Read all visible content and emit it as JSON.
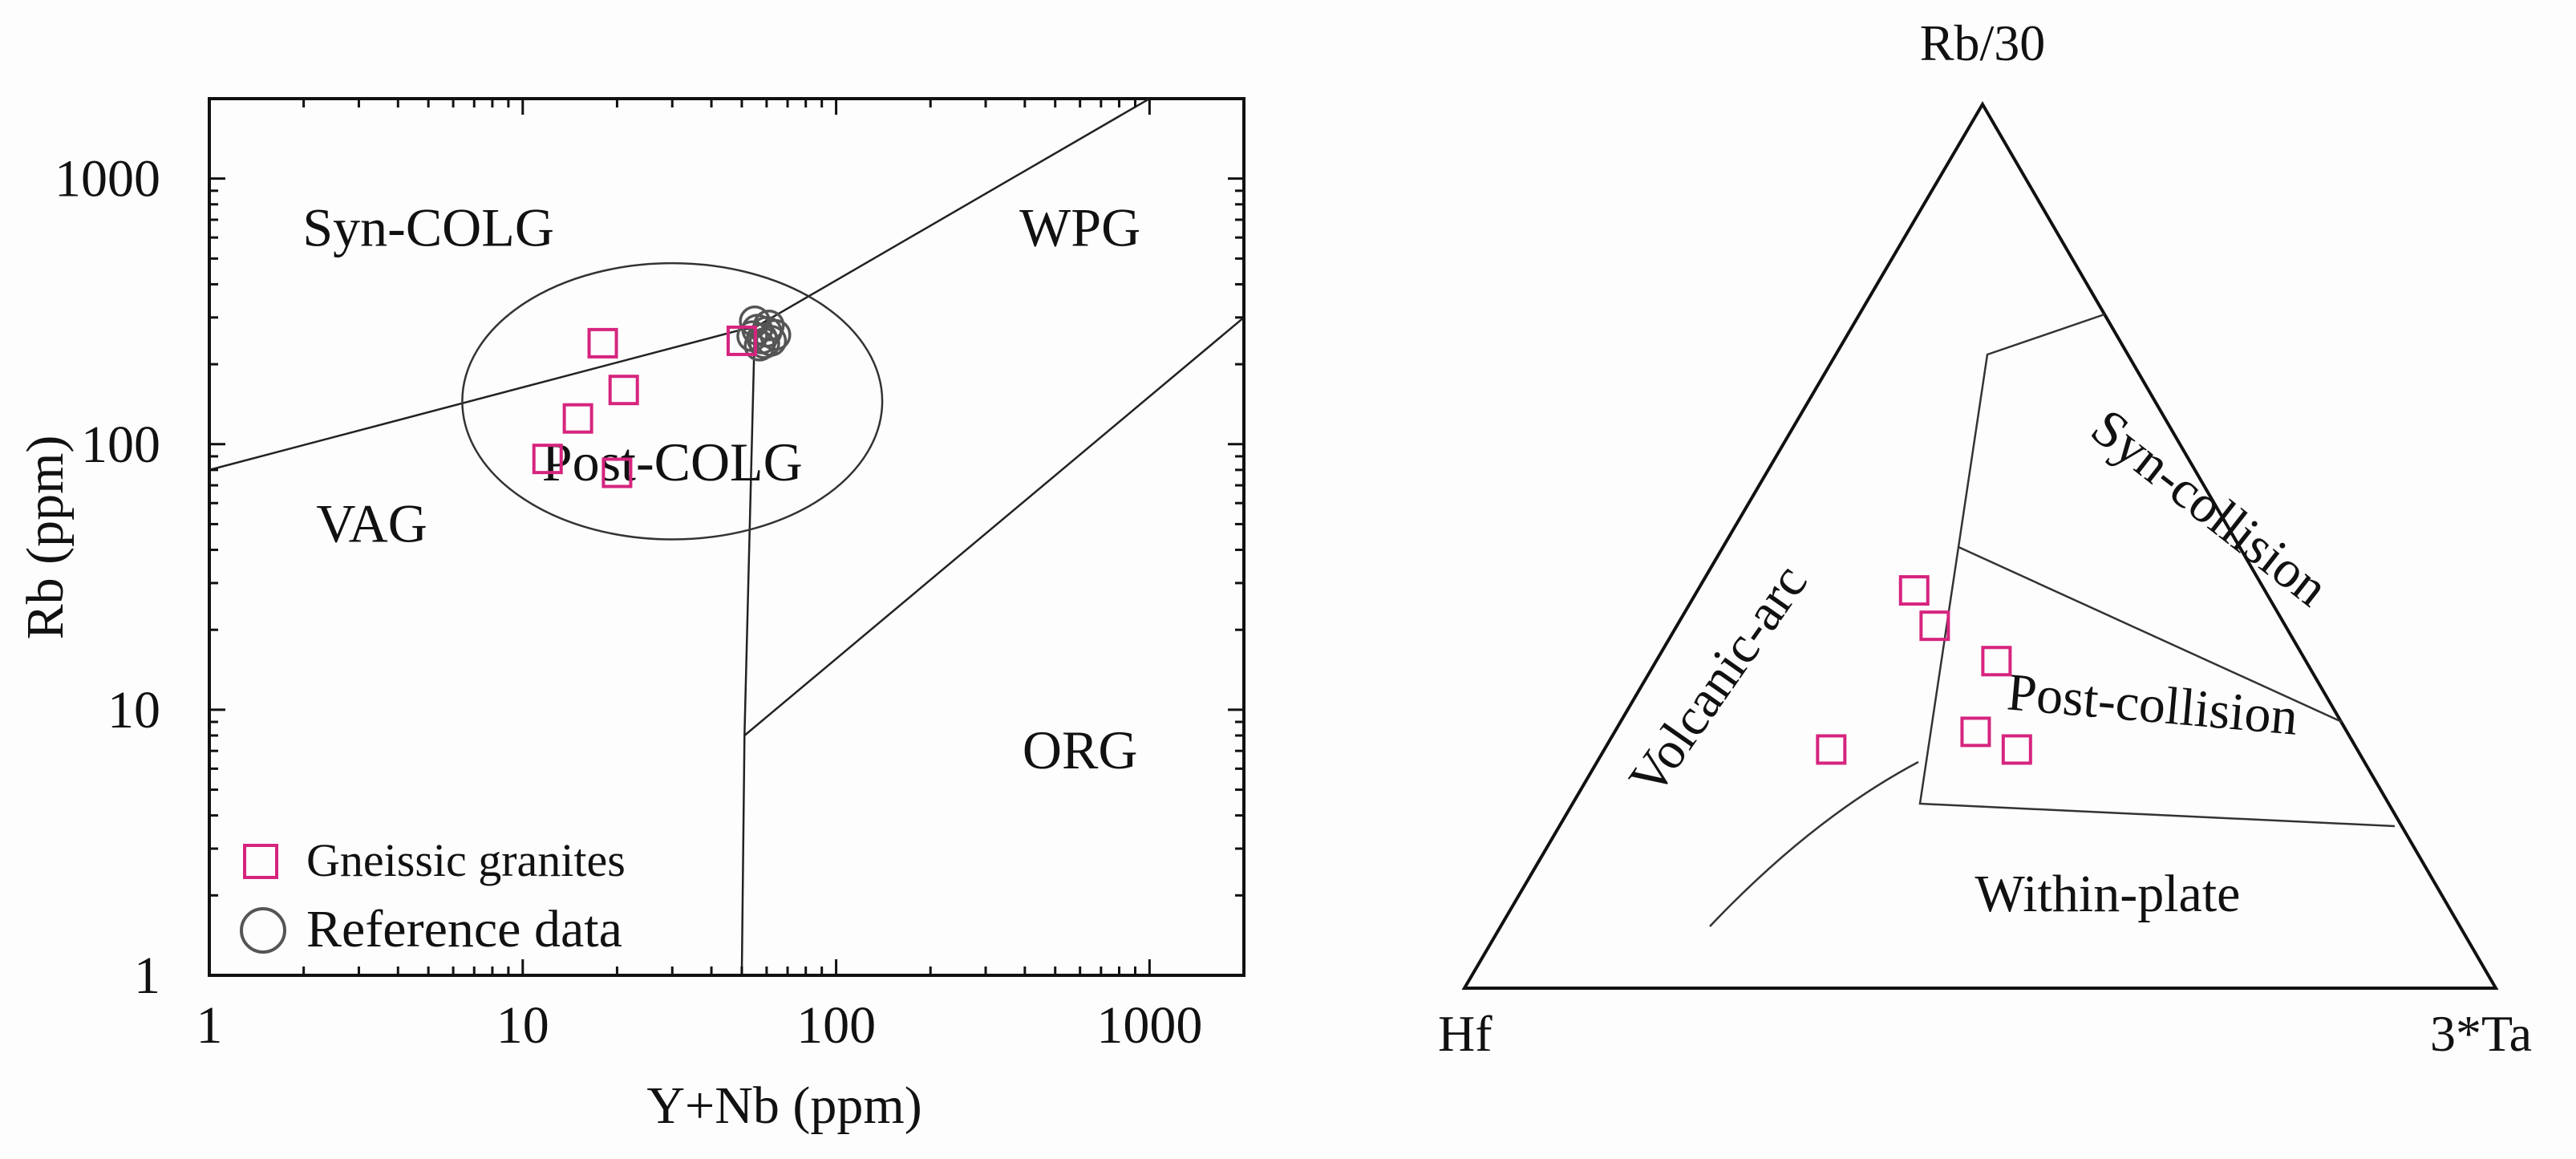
{
  "chart_data": [
    {
      "type": "scatter",
      "x_scale": "log",
      "y_scale": "log",
      "xlim": [
        1,
        2000
      ],
      "ylim": [
        1,
        2000
      ],
      "xlabel": "Y+Nb (ppm)",
      "ylabel": "Rb (ppm)",
      "x_ticks": [
        {
          "value": 1,
          "label": "1"
        },
        {
          "value": 10,
          "label": "10"
        },
        {
          "value": 100,
          "label": "100"
        },
        {
          "value": 1000,
          "label": "1000"
        }
      ],
      "y_ticks": [
        {
          "value": 1,
          "label": "1"
        },
        {
          "value": 10,
          "label": "10"
        },
        {
          "value": 100,
          "label": "100"
        },
        {
          "value": 1000,
          "label": "1000"
        }
      ],
      "grid": false,
      "legend_position": "bottom-left",
      "field_labels": [
        {
          "text": "Syn-COLG",
          "x": 5,
          "y": 650
        },
        {
          "text": "WPG",
          "x": 600,
          "y": 650
        },
        {
          "text": "VAG",
          "x": 3.3,
          "y": 50
        },
        {
          "text": "ORG",
          "x": 600,
          "y": 7
        },
        {
          "text": "Post-COLG",
          "x": 30,
          "y": 85
        }
      ],
      "boundaries": [
        [
          [
            1,
            80
          ],
          [
            50,
            270
          ],
          [
            55,
            275
          ],
          [
            1000,
            2000
          ]
        ],
        [
          [
            50,
            1
          ],
          [
            51,
            8
          ],
          [
            55,
            275
          ]
        ],
        [
          [
            51,
            8
          ],
          [
            2000,
            300
          ]
        ]
      ],
      "ellipse": {
        "center": [
          30,
          145
        ],
        "rx_decades": 0.67,
        "ry_decades": 0.52
      },
      "series": [
        {
          "name": "Gneissic granites",
          "marker": "square",
          "color": "#d6247e",
          "points": [
            {
              "x": 18,
              "y": 240
            },
            {
              "x": 15,
              "y": 125
            },
            {
              "x": 21,
              "y": 160
            },
            {
              "x": 12,
              "y": 88
            },
            {
              "x": 20,
              "y": 78
            },
            {
              "x": 50,
              "y": 245
            }
          ]
        },
        {
          "name": "Reference data",
          "marker": "circle",
          "color": "#555555",
          "points": [
            {
              "x": 55,
              "y": 290
            },
            {
              "x": 56,
              "y": 270
            },
            {
              "x": 58,
              "y": 250
            },
            {
              "x": 60,
              "y": 265
            },
            {
              "x": 62,
              "y": 245
            },
            {
              "x": 57,
              "y": 235
            },
            {
              "x": 54,
              "y": 255
            },
            {
              "x": 61,
              "y": 280
            },
            {
              "x": 64,
              "y": 258
            },
            {
              "x": 59,
              "y": 240
            }
          ]
        }
      ]
    },
    {
      "type": "ternary",
      "apex_labels": {
        "top": "Rb/30",
        "left": "Hf",
        "right": "3*Ta"
      },
      "field_labels": [
        {
          "text": "Syn-collision",
          "rotate": 38
        },
        {
          "text": "Post-collision",
          "rotate": 5
        },
        {
          "text": "Volcanic-arc",
          "rotate": -55
        },
        {
          "text": "Within-plate",
          "rotate": 0
        }
      ],
      "series": [
        {
          "name": "Gneissic granites",
          "marker": "square",
          "color": "#d6247e",
          "points": [
            {
              "top": 0.45,
              "left": 0.34,
              "right": 0.21
            },
            {
              "top": 0.41,
              "left": 0.34,
              "right": 0.25
            },
            {
              "top": 0.37,
              "left": 0.3,
              "right": 0.33
            },
            {
              "top": 0.29,
              "left": 0.36,
              "right": 0.35
            },
            {
              "top": 0.27,
              "left": 0.33,
              "right": 0.4
            },
            {
              "top": 0.27,
              "left": 0.51,
              "right": 0.22
            }
          ]
        }
      ]
    }
  ]
}
